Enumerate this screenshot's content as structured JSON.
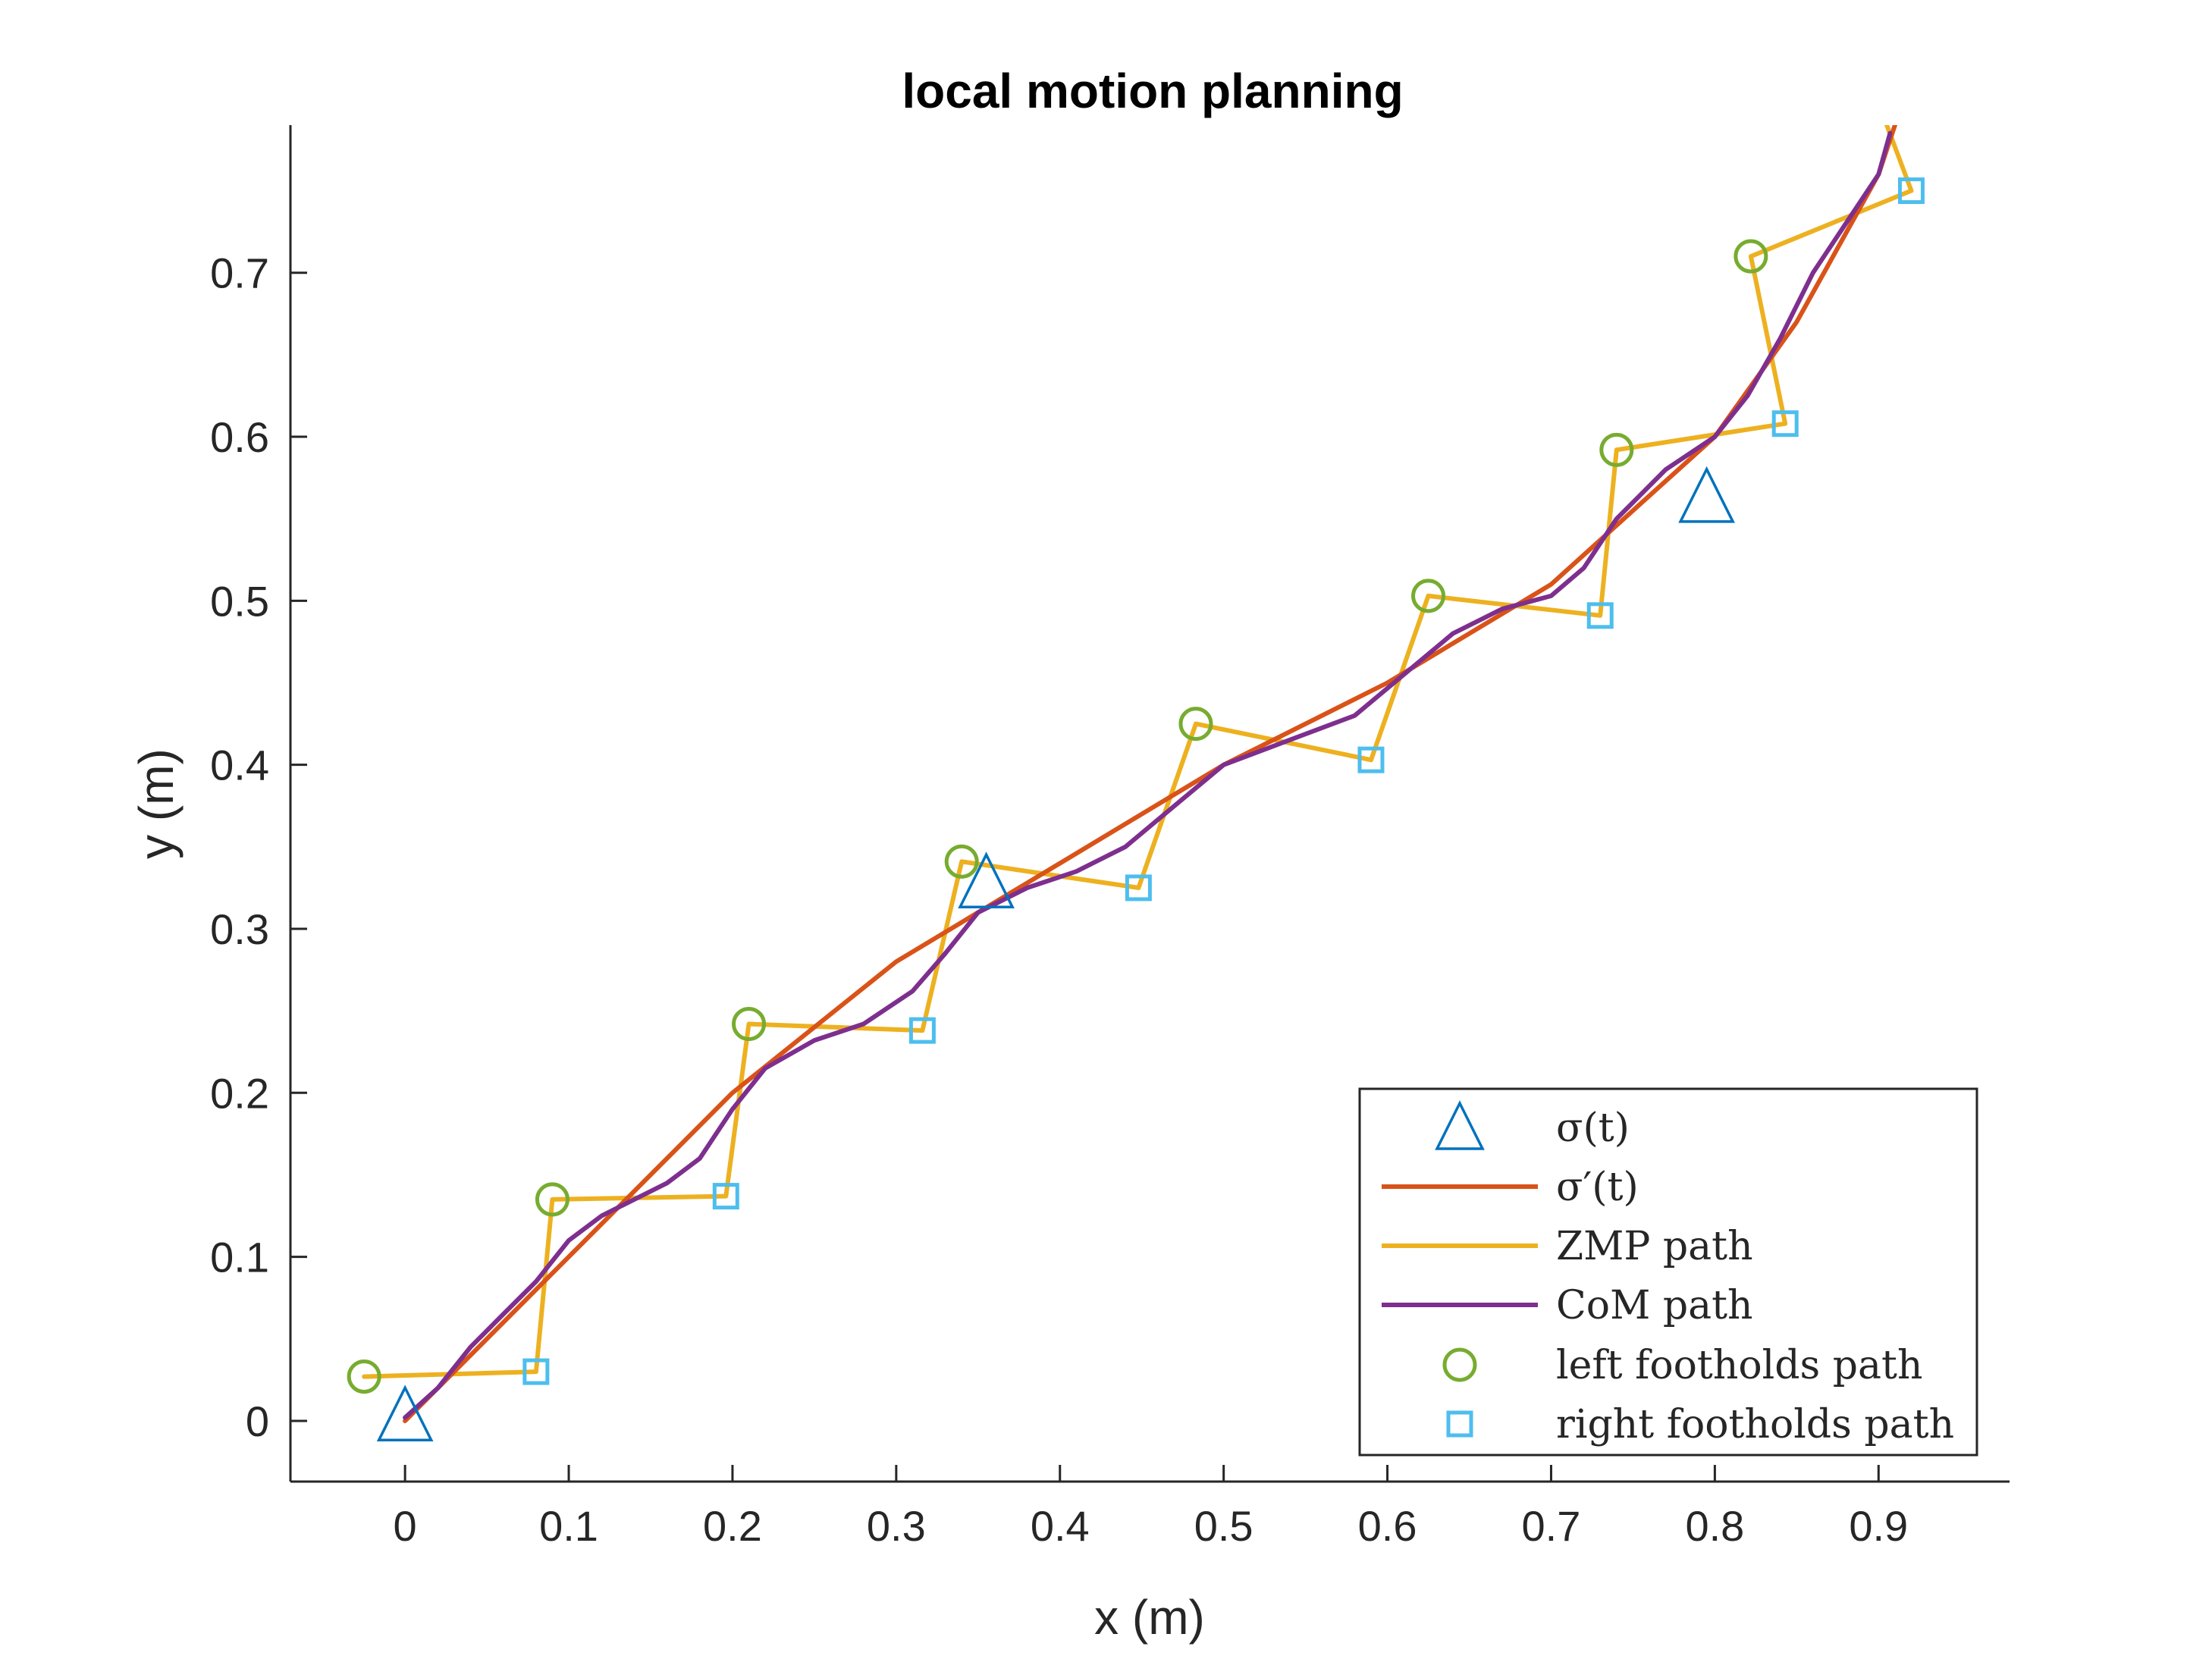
{
  "chart_data": {
    "type": "line",
    "title": "local motion planning",
    "xlabel": "x (m)",
    "ylabel": "y (m)",
    "xlim": [
      -0.07,
      0.98
    ],
    "ylim": [
      -0.037,
      0.79
    ],
    "xticks": [
      0,
      0.1,
      0.2,
      0.3,
      0.4,
      0.5,
      0.6,
      0.7,
      0.8,
      0.9
    ],
    "xtick_labels": [
      "0",
      "0.1",
      "0.2",
      "0.3",
      "0.4",
      "0.5",
      "0.6",
      "0.7",
      "0.8",
      "0.9"
    ],
    "yticks": [
      0,
      0.1,
      0.2,
      0.3,
      0.4,
      0.5,
      0.6,
      0.7
    ],
    "ytick_labels": [
      "0",
      "0.1",
      "0.2",
      "0.3",
      "0.4",
      "0.5",
      "0.6",
      "0.7"
    ],
    "grid": false,
    "legend_position": "bottom-right",
    "series": [
      {
        "name": "σ(t)",
        "kind": "markers",
        "marker": "triangle",
        "color": "#0072BD",
        "x": [
          0.0,
          0.355,
          0.795
        ],
        "y": [
          0.0,
          0.325,
          0.56
        ]
      },
      {
        "name": "σ′(t)",
        "kind": "line",
        "color": "#D95319",
        "x": [
          0.0,
          0.1,
          0.2,
          0.3,
          0.4,
          0.5,
          0.6,
          0.7,
          0.8,
          0.85,
          0.9,
          0.91
        ],
        "y": [
          0.0,
          0.1,
          0.2,
          0.28,
          0.34,
          0.4,
          0.45,
          0.51,
          0.6,
          0.67,
          0.76,
          0.79
        ]
      },
      {
        "name": "ZMP path",
        "kind": "line",
        "color": "#EDB120",
        "x": [
          -0.025,
          0.08,
          0.09,
          0.196,
          0.21,
          0.316,
          0.34,
          0.448,
          0.483,
          0.59,
          0.625,
          0.73,
          0.74,
          0.843,
          0.822,
          0.92,
          0.905
        ],
        "y": [
          0.027,
          0.03,
          0.135,
          0.137,
          0.242,
          0.238,
          0.341,
          0.325,
          0.425,
          0.403,
          0.503,
          0.491,
          0.592,
          0.608,
          0.71,
          0.75,
          0.79
        ]
      },
      {
        "name": "CoM path",
        "kind": "line",
        "color": "#7E2F8E",
        "x": [
          0.0,
          0.02,
          0.04,
          0.06,
          0.08,
          0.1,
          0.12,
          0.14,
          0.16,
          0.18,
          0.2,
          0.22,
          0.25,
          0.28,
          0.31,
          0.33,
          0.35,
          0.38,
          0.41,
          0.44,
          0.47,
          0.5,
          0.54,
          0.58,
          0.61,
          0.64,
          0.67,
          0.7,
          0.72,
          0.74,
          0.77,
          0.8,
          0.82,
          0.84,
          0.86,
          0.88,
          0.9,
          0.907
        ],
        "y": [
          0.002,
          0.02,
          0.045,
          0.065,
          0.085,
          0.11,
          0.125,
          0.135,
          0.145,
          0.16,
          0.19,
          0.215,
          0.232,
          0.242,
          0.262,
          0.285,
          0.31,
          0.325,
          0.335,
          0.35,
          0.375,
          0.4,
          0.415,
          0.43,
          0.455,
          0.48,
          0.495,
          0.503,
          0.52,
          0.55,
          0.58,
          0.6,
          0.625,
          0.66,
          0.7,
          0.73,
          0.76,
          0.785
        ]
      },
      {
        "name": "left footholds path",
        "kind": "markers",
        "marker": "circle",
        "color": "#77AC30",
        "x": [
          -0.025,
          0.09,
          0.21,
          0.34,
          0.483,
          0.625,
          0.74,
          0.822
        ],
        "y": [
          0.027,
          0.135,
          0.242,
          0.341,
          0.425,
          0.503,
          0.592,
          0.71
        ]
      },
      {
        "name": "right footholds path",
        "kind": "markers",
        "marker": "square",
        "color": "#4DBEEE",
        "x": [
          0.08,
          0.196,
          0.316,
          0.448,
          0.59,
          0.73,
          0.843,
          0.92
        ],
        "y": [
          0.03,
          0.137,
          0.238,
          0.325,
          0.403,
          0.491,
          0.608,
          0.75
        ]
      }
    ]
  }
}
